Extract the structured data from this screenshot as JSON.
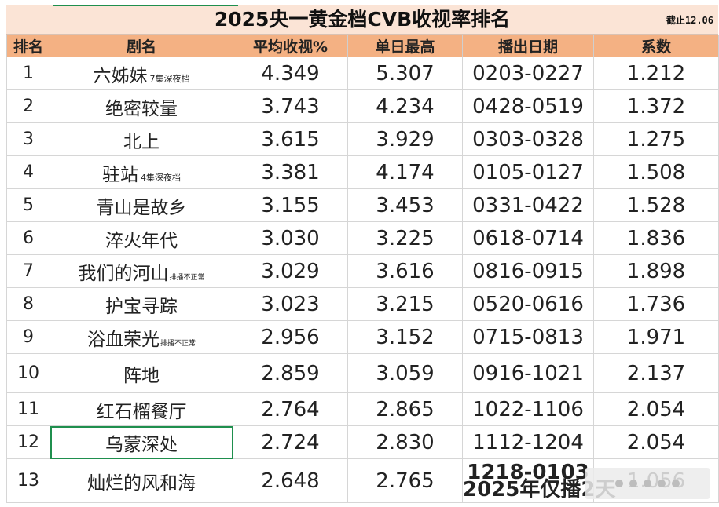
{
  "title": "2025央一黄金档CVB收视率排名",
  "as_of": "截止12.06",
  "columns": [
    "排名",
    "剧名",
    "平均收视%",
    "单日最高",
    "播出日期",
    "系数"
  ],
  "rows": [
    {
      "rank": "1",
      "name": "六姊妹",
      "note": "7集深夜档",
      "avg": "4.349",
      "peak": "5.307",
      "dates": "0203-0227",
      "coef": "1.212"
    },
    {
      "rank": "2",
      "name": "绝密较量",
      "note": "",
      "avg": "3.743",
      "peak": "4.234",
      "dates": "0428-0519",
      "coef": "1.372"
    },
    {
      "rank": "3",
      "name": "北上",
      "note": "",
      "avg": "3.615",
      "peak": "3.929",
      "dates": "0303-0328",
      "coef": "1.275"
    },
    {
      "rank": "4",
      "name": "驻站",
      "note": "4集深夜档",
      "avg": "3.381",
      "peak": "4.174",
      "dates": "0105-0127",
      "coef": "1.508"
    },
    {
      "rank": "5",
      "name": "青山是故乡",
      "note": "",
      "avg": "3.155",
      "peak": "3.453",
      "dates": "0331-0422",
      "coef": "1.528"
    },
    {
      "rank": "6",
      "name": "淬火年代",
      "note": "",
      "avg": "3.030",
      "peak": "3.225",
      "dates": "0618-0714",
      "coef": "1.836"
    },
    {
      "rank": "7",
      "name": "我们的河山",
      "note": "排播不正常",
      "avg": "3.029",
      "peak": "3.616",
      "dates": "0816-0915",
      "coef": "1.898"
    },
    {
      "rank": "8",
      "name": "护宝寻踪",
      "note": "",
      "avg": "3.023",
      "peak": "3.215",
      "dates": "0520-0616",
      "coef": "1.736"
    },
    {
      "rank": "9",
      "name": "浴血荣光",
      "note": "排播不正常",
      "avg": "2.956",
      "peak": "3.152",
      "dates": "0715-0813",
      "coef": "1.971"
    },
    {
      "rank": "10",
      "name": "阵地",
      "note": "",
      "avg": "2.859",
      "peak": "3.059",
      "dates": "0916-1021",
      "coef": "2.137"
    },
    {
      "rank": "11",
      "name": "红石榴餐厅",
      "note": "",
      "avg": "2.764",
      "peak": "2.865",
      "dates": "1022-1106",
      "coef": "2.054"
    },
    {
      "rank": "12",
      "name": "乌蒙深处",
      "note": "",
      "avg": "2.724",
      "peak": "2.830",
      "dates": "1112-1204",
      "coef": "2.054"
    },
    {
      "rank": "13",
      "name": "灿烂的风和海",
      "note": "",
      "avg": "2.648",
      "peak": "2.765",
      "dates": "1218-0103",
      "dates_note": "2025年仅播2天",
      "coef": "1.056"
    }
  ]
}
